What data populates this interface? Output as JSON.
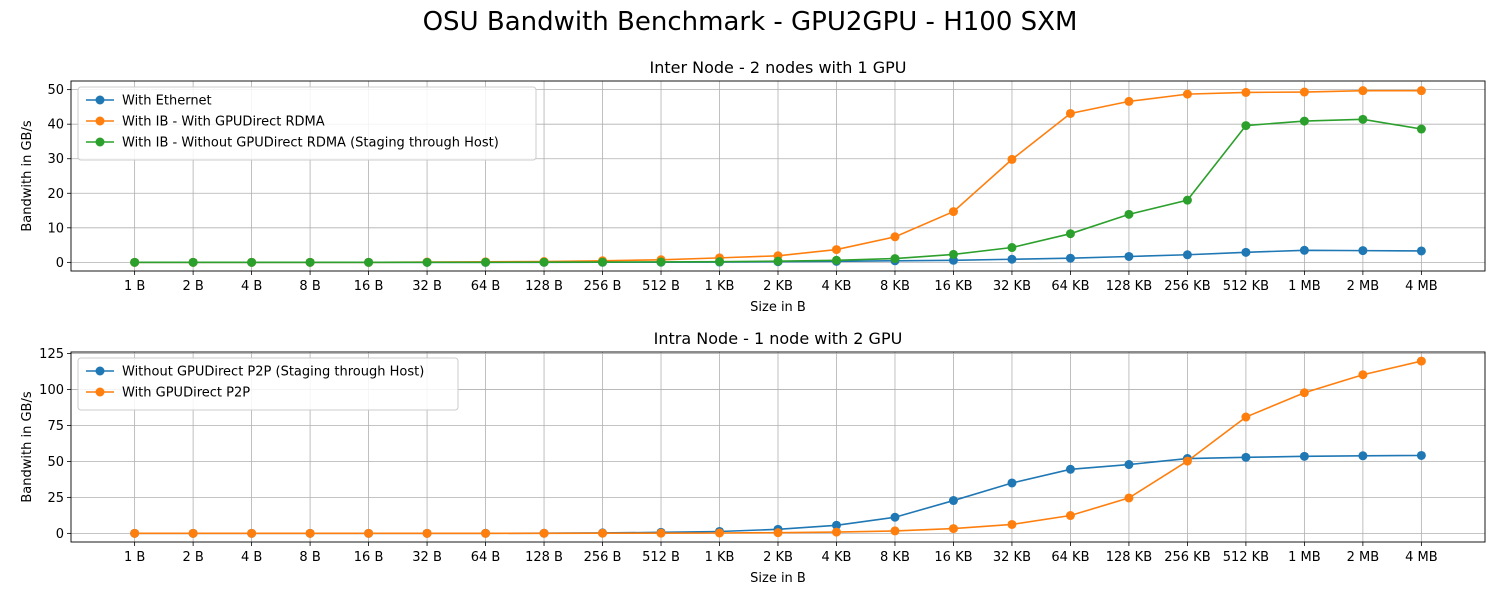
{
  "suptitle": "OSU Bandwith Benchmark - GPU2GPU - H100 SXM",
  "chart_data": [
    {
      "type": "line",
      "title": "Inter Node - 2 nodes with 1 GPU",
      "xlabel": "Size in B",
      "ylabel": "Bandwith in GB/s",
      "categories": [
        "1 B",
        "2 B",
        "4 B",
        "8 B",
        "16 B",
        "32 B",
        "64 B",
        "128 B",
        "256 B",
        "512 B",
        "1 KB",
        "2 KB",
        "4 KB",
        "8 KB",
        "16 KB",
        "32 KB",
        "64 KB",
        "128 KB",
        "256 KB",
        "512 KB",
        "1 MB",
        "2 MB",
        "4 MB"
      ],
      "ylim": [
        -2.5,
        52.5
      ],
      "yticks": [
        0,
        10,
        20,
        30,
        40,
        50
      ],
      "grid": true,
      "legend_position": "upper-left",
      "series": [
        {
          "name": "With Ethernet",
          "color": "#1f77b4",
          "values": [
            0,
            0,
            0,
            0,
            0,
            0,
            0.01,
            0.02,
            0.03,
            0.05,
            0.1,
            0.18,
            0.3,
            0.45,
            0.6,
            0.9,
            1.2,
            1.7,
            2.2,
            2.9,
            3.5,
            3.4,
            3.3
          ]
        },
        {
          "name": "With IB - With GPUDirect RDMA",
          "color": "#ff7f0e",
          "values": [
            0,
            0,
            0,
            0,
            0,
            0.1,
            0.15,
            0.25,
            0.45,
            0.75,
            1.3,
            1.9,
            3.7,
            7.4,
            14.7,
            29.8,
            43.1,
            46.6,
            48.7,
            49.2,
            49.3,
            49.7,
            49.7
          ]
        },
        {
          "name": "With IB - Without GPUDirect RDMA (Staging through Host)",
          "color": "#2ca02c",
          "values": [
            0,
            0,
            0,
            0,
            0,
            0,
            0.02,
            0.05,
            0.08,
            0.12,
            0.2,
            0.35,
            0.6,
            1.1,
            2.3,
            4.3,
            8.3,
            13.9,
            18.0,
            39.6,
            40.9,
            41.4,
            38.6
          ]
        }
      ]
    },
    {
      "type": "line",
      "title": "Intra Node - 1 node with 2 GPU",
      "xlabel": "Size in B",
      "ylabel": "Bandwith in GB/s",
      "categories": [
        "1 B",
        "2 B",
        "4 B",
        "8 B",
        "16 B",
        "32 B",
        "64 B",
        "128 B",
        "256 B",
        "512 B",
        "1 KB",
        "2 KB",
        "4 KB",
        "8 KB",
        "16 KB",
        "32 KB",
        "64 KB",
        "128 KB",
        "256 KB",
        "512 KB",
        "1 MB",
        "2 MB",
        "4 MB"
      ],
      "ylim": [
        -6,
        126
      ],
      "yticks": [
        0,
        25,
        50,
        75,
        100,
        125
      ],
      "grid": true,
      "legend_position": "upper-left",
      "series": [
        {
          "name": "Without GPUDirect P2P (Staging through Host)",
          "color": "#1f77b4",
          "values": [
            0,
            0,
            0,
            0,
            0,
            0,
            0.05,
            0.1,
            0.3,
            0.7,
            1.3,
            2.8,
            5.6,
            11.2,
            22.8,
            35.0,
            44.5,
            47.8,
            52.0,
            52.8,
            53.5,
            53.9,
            54.1
          ]
        },
        {
          "name": "With GPUDirect P2P",
          "color": "#ff7f0e",
          "values": [
            0,
            0,
            0,
            0,
            0,
            0,
            0,
            0.05,
            0.1,
            0.15,
            0.25,
            0.5,
            0.9,
            1.7,
            3.3,
            6.2,
            12.4,
            24.6,
            50.2,
            80.8,
            97.7,
            110.2,
            119.7
          ]
        }
      ]
    }
  ]
}
